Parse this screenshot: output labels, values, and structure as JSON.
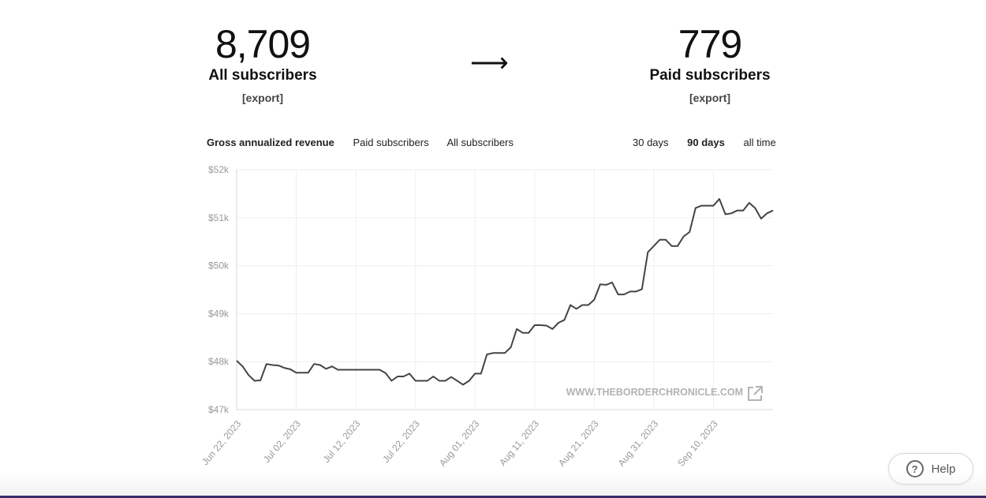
{
  "stats": {
    "all": {
      "value": "8,709",
      "label": "All subscribers",
      "export": "[export]"
    },
    "arrow": "⟶",
    "paid": {
      "value": "779",
      "label": "Paid subscribers",
      "export": "[export]"
    }
  },
  "metric_tabs": [
    {
      "label": "Gross annualized revenue",
      "active": true
    },
    {
      "label": "Paid subscribers",
      "active": false
    },
    {
      "label": "All subscribers",
      "active": false
    }
  ],
  "range_tabs": [
    {
      "label": "30 days",
      "active": false
    },
    {
      "label": "90 days",
      "active": true
    },
    {
      "label": "all time",
      "active": false
    }
  ],
  "watermark": "WWW.THEBORDERCHRONICLE.COM",
  "help_label": "Help",
  "chart_data": {
    "type": "line",
    "title": "",
    "xlabel": "",
    "ylabel": "",
    "ylim": [
      47000,
      52000
    ],
    "yticks": [
      47000,
      48000,
      49000,
      50000,
      51000,
      52000
    ],
    "ytick_labels": [
      "$47k",
      "$48k",
      "$49k",
      "$50k",
      "$51k",
      "$52k"
    ],
    "xlim": [
      "2023-06-22",
      "2023-09-20"
    ],
    "xticks": [
      "2023-06-22",
      "2023-07-02",
      "2023-07-12",
      "2023-07-22",
      "2023-08-01",
      "2023-08-11",
      "2023-08-21",
      "2023-08-31",
      "2023-09-10"
    ],
    "xtick_labels": [
      "Jun 22, 2023",
      "Jul 02, 2023",
      "Jul 12, 2023",
      "Jul 22, 2023",
      "Aug 01, 2023",
      "Aug 11, 2023",
      "Aug 21, 2023",
      "Aug 31, 2023",
      "Sep 10, 2023"
    ],
    "grid": true,
    "color": "#444444",
    "series": [
      {
        "x": [
          "2023-06-22",
          "2023-06-23",
          "2023-06-24",
          "2023-06-25",
          "2023-06-26",
          "2023-06-27",
          "2023-06-28",
          "2023-06-29",
          "2023-06-30",
          "2023-07-01",
          "2023-07-02",
          "2023-07-03",
          "2023-07-04",
          "2023-07-05",
          "2023-07-06",
          "2023-07-07",
          "2023-07-08",
          "2023-07-09",
          "2023-07-10",
          "2023-07-11",
          "2023-07-12",
          "2023-07-13",
          "2023-07-14",
          "2023-07-15",
          "2023-07-16",
          "2023-07-17",
          "2023-07-18",
          "2023-07-19",
          "2023-07-20",
          "2023-07-21",
          "2023-07-22",
          "2023-07-23",
          "2023-07-24",
          "2023-07-25",
          "2023-07-26",
          "2023-07-27",
          "2023-07-28",
          "2023-07-29",
          "2023-07-30",
          "2023-07-31",
          "2023-08-01",
          "2023-08-02",
          "2023-08-03",
          "2023-08-04",
          "2023-08-05",
          "2023-08-06",
          "2023-08-07",
          "2023-08-08",
          "2023-08-09",
          "2023-08-10",
          "2023-08-11",
          "2023-08-12",
          "2023-08-13",
          "2023-08-14",
          "2023-08-15",
          "2023-08-16",
          "2023-08-17",
          "2023-08-18",
          "2023-08-19",
          "2023-08-20",
          "2023-08-21",
          "2023-08-22",
          "2023-08-23",
          "2023-08-24",
          "2023-08-25",
          "2023-08-26",
          "2023-08-27",
          "2023-08-28",
          "2023-08-29",
          "2023-08-30",
          "2023-08-31",
          "2023-09-01",
          "2023-09-02",
          "2023-09-03",
          "2023-09-04",
          "2023-09-05",
          "2023-09-06",
          "2023-09-07",
          "2023-09-08",
          "2023-09-09",
          "2023-09-10",
          "2023-09-11",
          "2023-09-12",
          "2023-09-13",
          "2023-09-14",
          "2023-09-15",
          "2023-09-16",
          "2023-09-17",
          "2023-09-18",
          "2023-09-19",
          "2023-09-20"
        ],
        "values": [
          48020,
          47900,
          47720,
          47600,
          47610,
          47950,
          47930,
          47920,
          47870,
          47840,
          47770,
          47770,
          47770,
          47950,
          47930,
          47850,
          47900,
          47830,
          47830,
          47830,
          47830,
          47830,
          47830,
          47830,
          47830,
          47760,
          47600,
          47690,
          47690,
          47750,
          47600,
          47600,
          47600,
          47690,
          47600,
          47600,
          47680,
          47600,
          47520,
          47600,
          47750,
          47750,
          48150,
          48180,
          48180,
          48180,
          48300,
          48680,
          48600,
          48600,
          48760,
          48760,
          48750,
          48680,
          48810,
          48870,
          49180,
          49100,
          49180,
          49180,
          49290,
          49610,
          49600,
          49650,
          49400,
          49400,
          49460,
          49460,
          49510,
          50280,
          50410,
          50540,
          50540,
          50410,
          50410,
          50610,
          50700,
          51200,
          51250,
          51250,
          51250,
          51390,
          51070,
          51090,
          51150,
          51150,
          51310,
          51200,
          50980,
          51090,
          51150
        ]
      }
    ]
  }
}
